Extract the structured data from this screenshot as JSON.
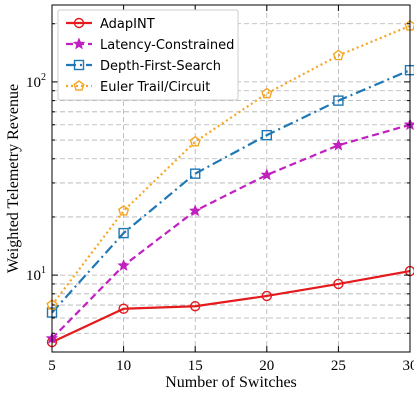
{
  "chart_data": {
    "type": "line",
    "xlabel": "Number of Switches",
    "ylabel": "Weighted Telemetry Revenue",
    "x": [
      5,
      10,
      15,
      20,
      25,
      30
    ],
    "xlim": [
      5,
      30
    ],
    "ylim": [
      4,
      250
    ],
    "yscale": "log",
    "x_ticks": [
      "5",
      "10",
      "15",
      "20",
      "25",
      "30"
    ],
    "y_ticks": [
      {
        "value": 10,
        "base": "10",
        "exp": "1"
      },
      {
        "value": 100,
        "base": "10",
        "exp": "2"
      }
    ],
    "grid": true,
    "legend_position": "top-left",
    "series": [
      {
        "name": "AdapINT",
        "color": "#e41a1c",
        "dash": "solid",
        "marker": "circle",
        "values": [
          4.5,
          6.7,
          6.9,
          7.8,
          9.0,
          10.5
        ]
      },
      {
        "name": "Latency-Constrained",
        "color": "#c020c0",
        "dash": "dashed",
        "marker": "star",
        "values": [
          4.7,
          11.2,
          21.5,
          33.0,
          47.0,
          60.0
        ]
      },
      {
        "name": "Depth-First-Search",
        "color": "#1f77b4",
        "dash": "dashdot",
        "marker": "square",
        "values": [
          6.4,
          16.5,
          33.5,
          53.0,
          80.0,
          115.0
        ]
      },
      {
        "name": "Euler Trail/Circuit",
        "color": "#f5a623",
        "dash": "dotted",
        "marker": "pentagon",
        "values": [
          7.0,
          21.5,
          49.0,
          87.0,
          137.0,
          195.0
        ]
      }
    ]
  }
}
